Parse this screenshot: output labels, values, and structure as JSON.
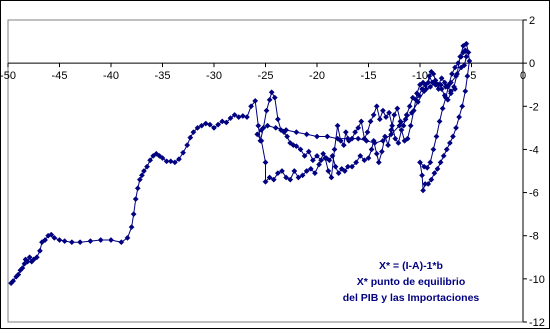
{
  "chart_data": {
    "type": "scatter",
    "line": true,
    "marker": "diamond",
    "color": "#000080",
    "xlim": [
      -50,
      0
    ],
    "ylim": [
      -12,
      2
    ],
    "xticks": [
      -50,
      -45,
      -40,
      -35,
      -30,
      -25,
      -20,
      -15,
      -10,
      -5,
      0
    ],
    "yticks": [
      2,
      0,
      -2,
      -4,
      -6,
      -8,
      -10,
      -12
    ],
    "xtick_labels": [
      "-50",
      "-45",
      "-40",
      "-35",
      "-30",
      "-25",
      "-20",
      "-15",
      "-10",
      "-5",
      "0"
    ],
    "ytick_labels": [
      "2",
      "0",
      "-2",
      "-4",
      "-6",
      "-8",
      "-10",
      "-12"
    ],
    "grid": false,
    "annotation": [
      "X* = (I-A)-1*b",
      "X* punto de equilibrio",
      "del PIB y las   Importaciones"
    ],
    "series": [
      {
        "points": [
          [
            -49.7,
            -10.2
          ],
          [
            -49.5,
            -10.1
          ],
          [
            -49.2,
            -9.9
          ],
          [
            -49.0,
            -9.8
          ],
          [
            -48.8,
            -9.6
          ],
          [
            -48.6,
            -9.5
          ],
          [
            -48.4,
            -9.3
          ],
          [
            -48.3,
            -9.1
          ],
          [
            -48.1,
            -9.2
          ],
          [
            -47.9,
            -9.0
          ],
          [
            -47.7,
            -9.2
          ],
          [
            -47.5,
            -9.1
          ],
          [
            -47.2,
            -9.0
          ],
          [
            -46.9,
            -8.7
          ],
          [
            -46.7,
            -8.3
          ],
          [
            -46.4,
            -8.2
          ],
          [
            -46.1,
            -8.0
          ],
          [
            -45.8,
            -7.95
          ],
          [
            -45.5,
            -8.1
          ],
          [
            -45.0,
            -8.2
          ],
          [
            -44.5,
            -8.25
          ],
          [
            -43.8,
            -8.3
          ],
          [
            -43.0,
            -8.3
          ],
          [
            -42.0,
            -8.25
          ],
          [
            -41.0,
            -8.2
          ],
          [
            -40.0,
            -8.2
          ],
          [
            -39.0,
            -8.3
          ],
          [
            -38.4,
            -8.1
          ],
          [
            -38.0,
            -7.6
          ],
          [
            -37.8,
            -7.0
          ],
          [
            -37.6,
            -6.3
          ],
          [
            -37.4,
            -5.8
          ],
          [
            -37.2,
            -5.4
          ],
          [
            -37.0,
            -5.2
          ],
          [
            -36.8,
            -5.0
          ],
          [
            -36.5,
            -4.8
          ],
          [
            -36.2,
            -4.5
          ],
          [
            -35.9,
            -4.3
          ],
          [
            -35.6,
            -4.2
          ],
          [
            -35.3,
            -4.3
          ],
          [
            -35.0,
            -4.4
          ],
          [
            -34.6,
            -4.55
          ],
          [
            -34.2,
            -4.55
          ],
          [
            -33.8,
            -4.6
          ],
          [
            -33.4,
            -4.45
          ],
          [
            -33.0,
            -4.15
          ],
          [
            -32.6,
            -3.8
          ],
          [
            -32.3,
            -3.45
          ],
          [
            -32.0,
            -3.2
          ],
          [
            -31.6,
            -3.0
          ],
          [
            -31.2,
            -2.9
          ],
          [
            -30.8,
            -2.8
          ],
          [
            -30.4,
            -2.85
          ],
          [
            -30.0,
            -3.0
          ],
          [
            -29.6,
            -2.85
          ],
          [
            -29.2,
            -2.7
          ],
          [
            -28.8,
            -2.75
          ],
          [
            -28.4,
            -2.55
          ],
          [
            -28.0,
            -2.4
          ],
          [
            -27.6,
            -2.5
          ],
          [
            -27.2,
            -2.45
          ],
          [
            -26.8,
            -2.5
          ],
          [
            -26.4,
            -2.0
          ],
          [
            -26.0,
            -1.75
          ],
          [
            -25.7,
            -2.9
          ],
          [
            -25.5,
            -3.6
          ],
          [
            -25.2,
            -3.0
          ],
          [
            -24.9,
            -2.2
          ],
          [
            -24.6,
            -1.7
          ],
          [
            -24.4,
            -1.35
          ],
          [
            -24.1,
            -1.6
          ],
          [
            -23.8,
            -2.6
          ],
          [
            -23.5,
            -3.1
          ],
          [
            -23.2,
            -3.2
          ],
          [
            -22.9,
            -3.4
          ],
          [
            -22.6,
            -3.7
          ],
          [
            -22.3,
            -3.8
          ],
          [
            -22.0,
            -3.85
          ],
          [
            -21.6,
            -4.0
          ],
          [
            -21.2,
            -4.3
          ],
          [
            -20.8,
            -4.1
          ],
          [
            -20.4,
            -4.5
          ],
          [
            -20.0,
            -4.3
          ],
          [
            -19.6,
            -4.5
          ],
          [
            -19.2,
            -4.4
          ],
          [
            -18.9,
            -5.0
          ],
          [
            -18.6,
            -5.3
          ],
          [
            -18.3,
            -4.0
          ],
          [
            -18.0,
            -2.9
          ],
          [
            -17.7,
            -3.6
          ],
          [
            -17.4,
            -3.8
          ],
          [
            -17.2,
            -3.2
          ],
          [
            -16.9,
            -3.6
          ],
          [
            -16.6,
            -3.5
          ],
          [
            -16.3,
            -3.2
          ],
          [
            -16.0,
            -3.0
          ],
          [
            -15.7,
            -2.7
          ],
          [
            -15.4,
            -3.5
          ],
          [
            -15.1,
            -3.2
          ],
          [
            -14.8,
            -2.7
          ],
          [
            -14.5,
            -2.4
          ],
          [
            -14.2,
            -2.0
          ],
          [
            -13.9,
            -2.6
          ],
          [
            -13.6,
            -2.2
          ],
          [
            -13.3,
            -2.5
          ],
          [
            -13.0,
            -2.3
          ],
          [
            -12.7,
            -2.9
          ],
          [
            -12.4,
            -3.5
          ],
          [
            -12.1,
            -3.7
          ],
          [
            -11.8,
            -3.1
          ],
          [
            -11.5,
            -3.6
          ],
          [
            -11.2,
            -3.5
          ],
          [
            -10.9,
            -2.9
          ],
          [
            -10.6,
            -2.2
          ],
          [
            -10.3,
            -1.4
          ],
          [
            -10.0,
            -1.0
          ],
          [
            -9.7,
            -0.9
          ],
          [
            -9.4,
            -1.2
          ],
          [
            -9.1,
            -0.6
          ],
          [
            -8.8,
            -0.9
          ],
          [
            -8.5,
            -1.0
          ],
          [
            -8.2,
            -1.2
          ],
          [
            -7.9,
            -1.2
          ],
          [
            -7.6,
            -1.5
          ],
          [
            -7.3,
            -1.7
          ],
          [
            -7.0,
            -1.4
          ],
          [
            -6.7,
            -1.1
          ],
          [
            -6.4,
            -0.5
          ],
          [
            -6.1,
            0.3
          ],
          [
            -5.8,
            0.8
          ],
          [
            -5.5,
            0.9
          ],
          [
            -5.3,
            0.5
          ],
          [
            -5.2,
            0.1
          ],
          [
            -5.4,
            -0.6
          ],
          [
            -5.6,
            -1.3
          ],
          [
            -5.9,
            -2.0
          ],
          [
            -6.2,
            -2.5
          ],
          [
            -6.5,
            -3.0
          ],
          [
            -6.8,
            -3.4
          ],
          [
            -7.1,
            -3.7
          ],
          [
            -7.4,
            -4.0
          ],
          [
            -7.7,
            -4.3
          ],
          [
            -8.0,
            -4.6
          ],
          [
            -8.3,
            -4.9
          ],
          [
            -8.6,
            -5.1
          ],
          [
            -8.9,
            -5.4
          ],
          [
            -9.2,
            -5.6
          ],
          [
            -9.5,
            -5.6
          ],
          [
            -9.7,
            -5.9
          ],
          [
            -9.8,
            -5.2
          ],
          [
            -10.0,
            -4.6
          ],
          [
            -9.6,
            -4.8
          ],
          [
            -9.3,
            -4.85
          ],
          [
            -9.0,
            -4.6
          ],
          [
            -8.7,
            -4.0
          ],
          [
            -8.4,
            -3.4
          ],
          [
            -8.1,
            -2.7
          ],
          [
            -7.8,
            -2.1
          ],
          [
            -7.5,
            -1.6
          ],
          [
            -7.2,
            -1.0
          ],
          [
            -6.9,
            -0.5
          ],
          [
            -6.6,
            -0.2
          ],
          [
            -6.3,
            0.0
          ],
          [
            -6.0,
            0.3
          ],
          [
            -5.8,
            0.5
          ],
          [
            -5.6,
            0.6
          ],
          [
            -5.5,
            0.3
          ],
          [
            -5.7,
            -0.1
          ],
          [
            -6.0,
            -0.2
          ],
          [
            -6.5,
            -0.6
          ],
          [
            -7.0,
            -0.9
          ],
          [
            -7.5,
            -1.1
          ],
          [
            -8.0,
            -1.0
          ],
          [
            -8.5,
            -0.9
          ],
          [
            -9.0,
            -1.1
          ],
          [
            -9.6,
            -1.3
          ],
          [
            -10.2,
            -1.8
          ],
          [
            -10.8,
            -2.3
          ],
          [
            -11.4,
            -2.6
          ],
          [
            -12.0,
            -2.9
          ],
          [
            -12.8,
            -3.3
          ],
          [
            -13.6,
            -3.6
          ],
          [
            -14.4,
            -3.7
          ],
          [
            -15.2,
            -3.6
          ],
          [
            -16.0,
            -3.5
          ],
          [
            -17.0,
            -3.5
          ],
          [
            -18.0,
            -3.5
          ],
          [
            -19.0,
            -3.4
          ],
          [
            -20.0,
            -3.4
          ],
          [
            -21.0,
            -3.3
          ],
          [
            -22.0,
            -3.2
          ],
          [
            -23.0,
            -3.1
          ],
          [
            -24.0,
            -3.0
          ],
          [
            -24.8,
            -2.9
          ],
          [
            -25.4,
            -3.1
          ],
          [
            -25.8,
            -3.3
          ],
          [
            -25.4,
            -3.6
          ],
          [
            -25.0,
            -4.6
          ],
          [
            -25.0,
            -5.5
          ],
          [
            -24.6,
            -5.3
          ],
          [
            -24.2,
            -5.4
          ],
          [
            -23.8,
            -5.1
          ],
          [
            -23.4,
            -5.0
          ],
          [
            -23.0,
            -5.3
          ],
          [
            -22.6,
            -5.4
          ],
          [
            -22.2,
            -5.0
          ],
          [
            -21.8,
            -5.3
          ],
          [
            -21.4,
            -5.2
          ],
          [
            -21.0,
            -5.0
          ],
          [
            -20.6,
            -4.9
          ],
          [
            -20.2,
            -5.1
          ],
          [
            -19.8,
            -4.7
          ],
          [
            -19.4,
            -4.2
          ],
          [
            -19.1,
            -4.4
          ],
          [
            -18.8,
            -4.5
          ],
          [
            -18.5,
            -4.3
          ],
          [
            -18.2,
            -4.8
          ],
          [
            -17.9,
            -5.1
          ],
          [
            -17.6,
            -4.9
          ],
          [
            -17.3,
            -5.0
          ],
          [
            -17.0,
            -4.8
          ],
          [
            -16.6,
            -4.8
          ],
          [
            -16.2,
            -4.6
          ],
          [
            -15.8,
            -4.3
          ],
          [
            -15.4,
            -4.5
          ],
          [
            -15.0,
            -4.4
          ],
          [
            -14.7,
            -4.0
          ],
          [
            -14.5,
            -3.6
          ],
          [
            -14.2,
            -4.2
          ],
          [
            -14.0,
            -4.6
          ],
          [
            -13.7,
            -4.1
          ],
          [
            -13.4,
            -3.4
          ],
          [
            -13.1,
            -3.8
          ],
          [
            -12.8,
            -3.1
          ],
          [
            -12.5,
            -2.4
          ],
          [
            -12.2,
            -2.1
          ],
          [
            -11.9,
            -2.7
          ],
          [
            -11.6,
            -2.9
          ],
          [
            -11.3,
            -2.4
          ],
          [
            -11.0,
            -2.0
          ],
          [
            -10.7,
            -1.6
          ],
          [
            -10.4,
            -1.7
          ],
          [
            -10.1,
            -1.5
          ],
          [
            -9.8,
            -1.2
          ],
          [
            -9.5,
            -1.0
          ],
          [
            -9.2,
            -0.9
          ],
          [
            -8.9,
            -0.4
          ],
          [
            -8.7,
            -0.5
          ],
          [
            -8.5,
            -0.8
          ],
          [
            -8.2,
            -1.0
          ],
          [
            -7.9,
            -0.7
          ],
          [
            -7.6,
            -0.9
          ],
          [
            -7.3,
            -1.1
          ],
          [
            -7.0,
            -1.3
          ],
          [
            -6.6,
            -1.2
          ]
        ]
      }
    ]
  }
}
